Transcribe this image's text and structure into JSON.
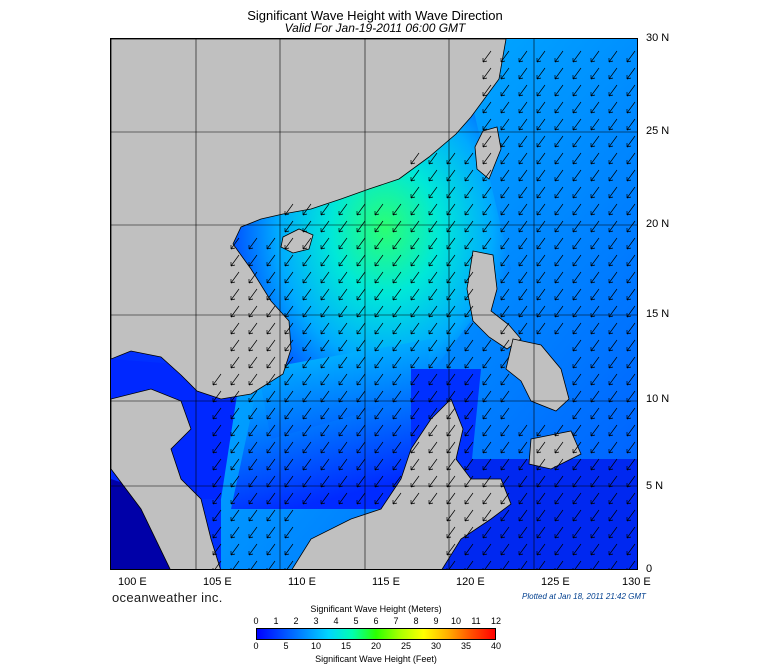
{
  "title": "Significant Wave Height with Wave Direction",
  "subtitle": "Valid For Jan-19-2011 06:00 GMT",
  "latitude_labels": [
    "30 N",
    "25 N",
    "20 N",
    "15 N",
    "10 N",
    "5 N",
    "0"
  ],
  "longitude_labels": [
    "100 E",
    "105 E",
    "110 E",
    "115 E",
    "120 E",
    "125 E",
    "130 E"
  ],
  "brand": "oceanweather inc.",
  "plotted": "Plotted at Jan 18, 2011 21:42 GMT",
  "colorbar": {
    "meters_title": "Significant Wave Height (Meters)",
    "meters_ticks": [
      "0",
      "1",
      "2",
      "3",
      "4",
      "5",
      "6",
      "7",
      "8",
      "9",
      "10",
      "11",
      "12"
    ],
    "feet_title": "Significant Wave Height (Feet)",
    "feet_ticks": [
      "0",
      "5",
      "10",
      "15",
      "20",
      "25",
      "30",
      "35",
      "40"
    ],
    "colors": [
      "#0000ff",
      "#0047ff",
      "#008dff",
      "#00d5ff",
      "#00ffb0",
      "#2bff00",
      "#a8ff00",
      "#ffff00",
      "#ffb000",
      "#ff5000",
      "#ff0000"
    ]
  },
  "map_colors": {
    "land": "#c0c0c0",
    "water_low": "#0018ff",
    "water_mid": "#0096ff",
    "water_high": "#00e8d8",
    "water_peak": "#2bff72"
  }
}
